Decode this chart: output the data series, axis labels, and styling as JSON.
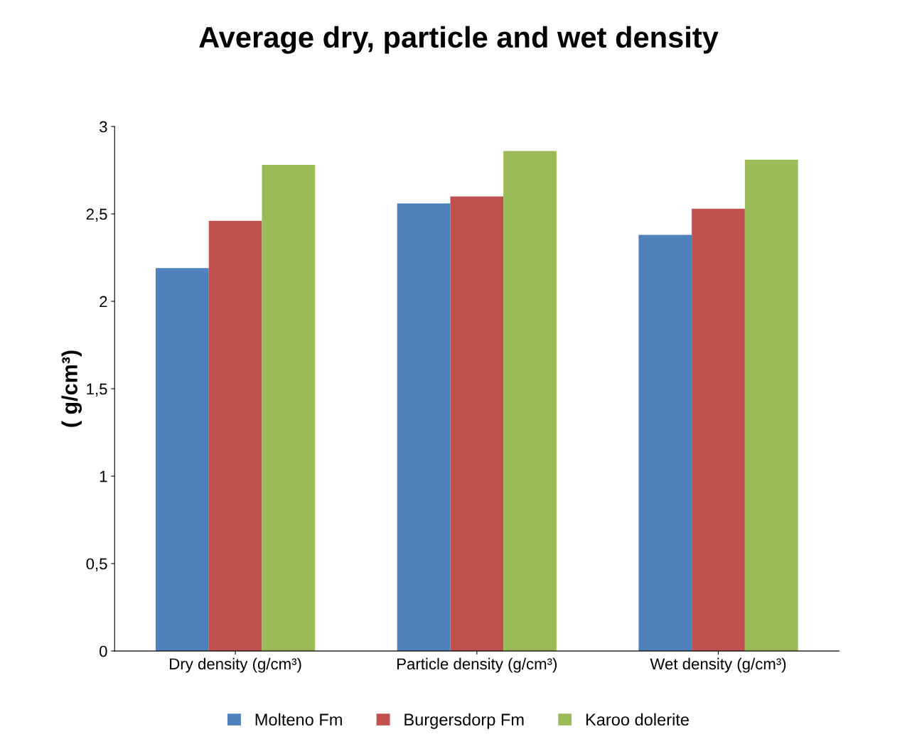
{
  "chart_data": {
    "type": "bar",
    "title": "Average dry, particle and wet density",
    "ylabel": "( g/cm³)",
    "categories": [
      "Dry density (g/cm³)",
      "Particle density (g/cm³)",
      "Wet density (g/cm³)"
    ],
    "series": [
      {
        "name": "Molteno Fm",
        "color": "#4f81bd",
        "values": [
          2.19,
          2.56,
          2.38
        ]
      },
      {
        "name": "Burgersdorp Fm",
        "color": "#c0504d",
        "values": [
          2.46,
          2.6,
          2.53
        ]
      },
      {
        "name": "Karoo dolerite",
        "color": "#9bbb59",
        "values": [
          2.78,
          2.86,
          2.81
        ]
      }
    ],
    "ylim": [
      0,
      3
    ],
    "yticks": [
      {
        "value": 0,
        "label": "0"
      },
      {
        "value": 0.5,
        "label": "0,5"
      },
      {
        "value": 1,
        "label": "1"
      },
      {
        "value": 1.5,
        "label": "1,5"
      },
      {
        "value": 2,
        "label": "2"
      },
      {
        "value": 2.5,
        "label": "2,5"
      },
      {
        "value": 3,
        "label": "3"
      }
    ],
    "grid": false,
    "legend": "bottom"
  }
}
